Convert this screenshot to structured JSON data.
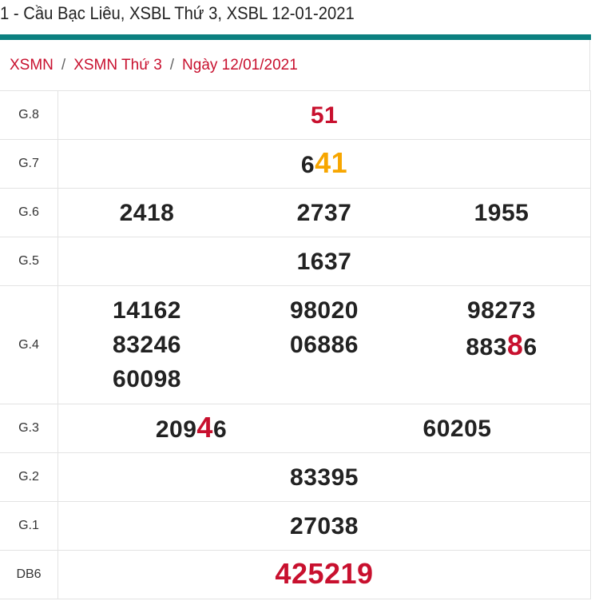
{
  "page_title": "1 - Cầu Bạc Liêu, XSBL Thứ 3, XSBL 12-01-2021",
  "colors": {
    "accent_bar": "#0b8080",
    "red": "#c8102e",
    "orange": "#f7a600",
    "text": "#222222"
  },
  "breadcrumb": [
    {
      "label": "XSMN"
    },
    {
      "label": "XSMN Thứ 3"
    },
    {
      "label": "Ngày 12/01/2021"
    }
  ],
  "breadcrumb_separator": "/",
  "prizes": [
    {
      "label": "G.8",
      "numbers": [
        [
          {
            "t": "51",
            "c": "red"
          }
        ]
      ]
    },
    {
      "label": "G.7",
      "numbers": [
        [
          {
            "t": "6",
            "c": ""
          },
          {
            "t": "41",
            "c": "or"
          }
        ]
      ]
    },
    {
      "label": "G.6",
      "numbers": [
        [
          {
            "t": "2418",
            "c": ""
          }
        ],
        [
          {
            "t": "2737",
            "c": ""
          }
        ],
        [
          {
            "t": "1955",
            "c": ""
          }
        ]
      ]
    },
    {
      "label": "G.5",
      "numbers": [
        [
          {
            "t": "1637",
            "c": ""
          }
        ]
      ]
    },
    {
      "label": "G.4",
      "columns": [
        [
          [
            {
              "t": "14162",
              "c": ""
            }
          ],
          [
            {
              "t": "83246",
              "c": ""
            }
          ],
          [
            {
              "t": "60098",
              "c": ""
            }
          ]
        ],
        [
          [
            {
              "t": "98020",
              "c": ""
            }
          ],
          [
            {
              "t": "06886",
              "c": ""
            }
          ]
        ],
        [
          [
            {
              "t": "98273",
              "c": ""
            }
          ],
          [
            {
              "t": "883",
              "c": ""
            },
            {
              "t": "8",
              "c": "hl"
            },
            {
              "t": "6",
              "c": ""
            }
          ]
        ]
      ]
    },
    {
      "label": "G.3",
      "numbers": [
        [
          {
            "t": "209",
            "c": ""
          },
          {
            "t": "4",
            "c": "hl"
          },
          {
            "t": "6",
            "c": ""
          }
        ],
        [
          {
            "t": "60205",
            "c": ""
          }
        ]
      ]
    },
    {
      "label": "G.2",
      "numbers": [
        [
          {
            "t": "83395",
            "c": ""
          }
        ]
      ]
    },
    {
      "label": "G.1",
      "numbers": [
        [
          {
            "t": "27038",
            "c": ""
          }
        ]
      ]
    },
    {
      "label": "DB6",
      "numbers": [
        [
          {
            "t": "425219",
            "c": "red big"
          }
        ]
      ]
    }
  ]
}
